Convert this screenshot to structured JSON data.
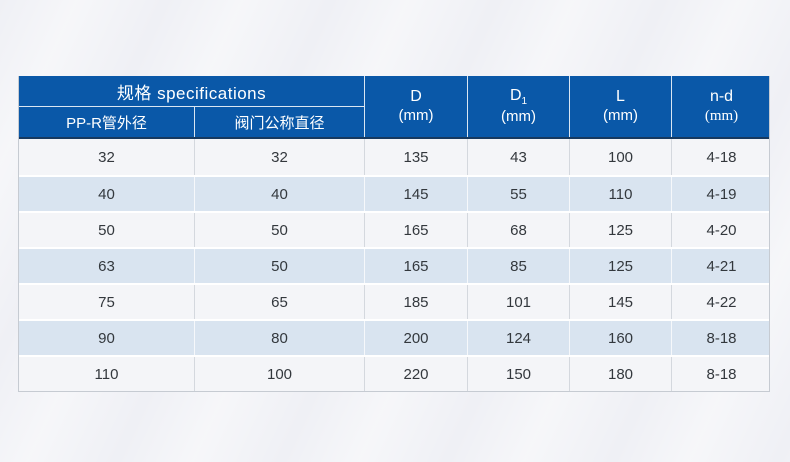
{
  "colors": {
    "page_bg": "#eff0f5",
    "header_bg": "#0a58a8",
    "header_underline": "#17395f",
    "row_white": "#f4f5f8",
    "row_blue": "#d9e4f0",
    "cell_text": "#33383d",
    "grid_line": "#d4d8de",
    "outer_border": "#c6cbd2"
  },
  "table": {
    "header": {
      "spec_title": "规格 specifications",
      "sub_left": "PP-R管外径",
      "sub_right": "阀门公称直径",
      "col_d": {
        "line1": "D",
        "line2": "(mm)"
      },
      "col_d1": {
        "base": "D",
        "sub": "1",
        "line2": "(mm)"
      },
      "col_l": {
        "line1": "L",
        "line2": "(mm)"
      },
      "col_nd": {
        "line1": "n-d",
        "line2": "(mm)"
      }
    },
    "rows": [
      {
        "cells": [
          "32",
          "32",
          "135",
          "43",
          "100",
          "4-18"
        ]
      },
      {
        "cells": [
          "40",
          "40",
          "145",
          "55",
          "110",
          "4-19"
        ]
      },
      {
        "cells": [
          "50",
          "50",
          "165",
          "68",
          "125",
          "4-20"
        ]
      },
      {
        "cells": [
          "63",
          "50",
          "165",
          "85",
          "125",
          "4-21"
        ]
      },
      {
        "cells": [
          "75",
          "65",
          "185",
          "101",
          "145",
          "4-22"
        ]
      },
      {
        "cells": [
          "90",
          "80",
          "200",
          "124",
          "160",
          "8-18"
        ]
      },
      {
        "cells": [
          "110",
          "100",
          "220",
          "150",
          "180",
          "8-18"
        ]
      }
    ]
  },
  "chart_data": {
    "type": "table",
    "title": "规格 specifications",
    "columns": [
      "PP-R管外径",
      "阀门公称直径",
      "D (mm)",
      "D1 (mm)",
      "L (mm)",
      "n-d (mm)"
    ],
    "rows": [
      [
        "32",
        "32",
        "135",
        "43",
        "100",
        "4-18"
      ],
      [
        "40",
        "40",
        "145",
        "55",
        "110",
        "4-19"
      ],
      [
        "50",
        "50",
        "165",
        "68",
        "125",
        "4-20"
      ],
      [
        "63",
        "50",
        "165",
        "85",
        "125",
        "4-21"
      ],
      [
        "75",
        "65",
        "185",
        "101",
        "145",
        "4-22"
      ],
      [
        "90",
        "80",
        "200",
        "124",
        "160",
        "8-18"
      ],
      [
        "110",
        "100",
        "220",
        "150",
        "180",
        "8-18"
      ]
    ]
  }
}
